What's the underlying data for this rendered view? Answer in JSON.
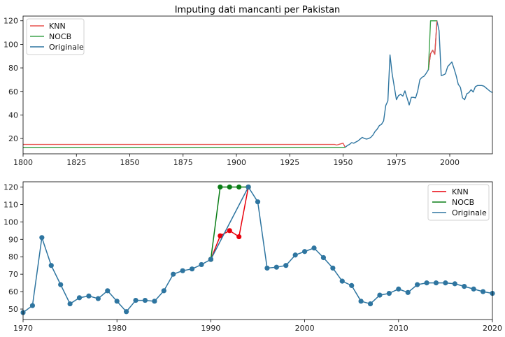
{
  "chart_data": [
    {
      "type": "line",
      "title": "Imputing dati mancanti per Pakistan",
      "xlabel": "",
      "ylabel": "",
      "xlim": [
        1800,
        2020
      ],
      "ylim": [
        7,
        124
      ],
      "xticks": [
        1800,
        1825,
        1850,
        1875,
        1900,
        1925,
        1950,
        1975,
        2000
      ],
      "yticks": [
        20,
        40,
        60,
        80,
        100,
        120
      ],
      "legend_position": "top-left",
      "grid": false,
      "series": [
        {
          "name": "KNN",
          "color": "#e8524f",
          "points": [
            [
              1800,
              15
            ],
            [
              1946,
              15
            ],
            [
              1947,
              14.5
            ],
            [
              1948,
              15
            ],
            [
              1950,
              16
            ],
            [
              1951,
              12.5
            ]
          ]
        },
        {
          "name": "NOCB",
          "color": "#3fa34d",
          "points": [
            [
              1800,
              12.5
            ],
            [
              1951,
              12.5
            ]
          ]
        },
        {
          "name": "Originale",
          "color": "#2e75a0",
          "points": [
            [
              1951,
              12.5
            ],
            [
              1952,
              14
            ],
            [
              1953,
              15
            ],
            [
              1954,
              16.5
            ],
            [
              1955,
              16
            ],
            [
              1956,
              17
            ],
            [
              1957,
              18
            ],
            [
              1958,
              19.5
            ],
            [
              1959,
              21
            ],
            [
              1960,
              20
            ],
            [
              1961,
              19.5
            ],
            [
              1962,
              20
            ],
            [
              1963,
              21
            ],
            [
              1964,
              23
            ],
            [
              1965,
              26
            ],
            [
              1966,
              28
            ],
            [
              1967,
              31
            ],
            [
              1968,
              32
            ],
            [
              1969,
              35
            ],
            [
              1970,
              48
            ],
            [
              1971,
              52
            ],
            [
              1972,
              91
            ],
            [
              1973,
              75
            ],
            [
              1974,
              64
            ],
            [
              1975,
              53
            ],
            [
              1976,
              56.5
            ],
            [
              1977,
              57.5
            ],
            [
              1978,
              56
            ],
            [
              1979,
              60.5
            ],
            [
              1980,
              54.5
            ],
            [
              1981,
              48.5
            ],
            [
              1982,
              55
            ],
            [
              1983,
              55
            ],
            [
              1984,
              54.5
            ],
            [
              1985,
              60.5
            ],
            [
              1986,
              70
            ],
            [
              1987,
              72
            ],
            [
              1988,
              73
            ],
            [
              1989,
              75.5
            ],
            [
              1990,
              78.5
            ],
            [
              1991,
              92
            ],
            [
              1992,
              95
            ],
            [
              1993,
              91.5
            ],
            [
              1994,
              120
            ],
            [
              1995,
              111.5
            ],
            [
              1996,
              73.5
            ],
            [
              1997,
              74
            ],
            [
              1998,
              75
            ],
            [
              1999,
              81
            ],
            [
              2000,
              83
            ],
            [
              2001,
              85
            ],
            [
              2002,
              79.5
            ],
            [
              2003,
              73.5
            ],
            [
              2004,
              66
            ],
            [
              2005,
              63.5
            ],
            [
              2006,
              54.5
            ],
            [
              2007,
              53
            ],
            [
              2008,
              58
            ],
            [
              2009,
              59
            ],
            [
              2010,
              61.5
            ],
            [
              2011,
              59.5
            ],
            [
              2012,
              64
            ],
            [
              2013,
              65
            ],
            [
              2014,
              65
            ],
            [
              2015,
              65
            ],
            [
              2016,
              64.5
            ],
            [
              2017,
              63
            ],
            [
              2018,
              61.5
            ],
            [
              2019,
              60
            ],
            [
              2020,
              59
            ]
          ]
        }
      ],
      "overlays": [
        {
          "series": "KNN",
          "points": [
            [
              1990,
              78.5
            ],
            [
              1991,
              92
            ],
            [
              1992,
              95
            ],
            [
              1993,
              91.5
            ],
            [
              1994,
              120
            ]
          ]
        },
        {
          "series": "NOCB",
          "points": [
            [
              1990,
              78.5
            ],
            [
              1991,
              120
            ],
            [
              1992,
              120
            ],
            [
              1993,
              120
            ],
            [
              1994,
              120
            ]
          ]
        }
      ]
    },
    {
      "type": "line",
      "title": "",
      "xlabel": "",
      "ylabel": "",
      "xlim": [
        1970,
        2020
      ],
      "ylim": [
        44,
        123
      ],
      "xticks": [
        1970,
        1980,
        1990,
        2000,
        2010,
        2020
      ],
      "yticks": [
        50,
        60,
        70,
        80,
        90,
        100,
        110,
        120
      ],
      "legend_position": "top-right",
      "grid": false,
      "markers": true,
      "series": [
        {
          "name": "KNN",
          "color": "#e8000b",
          "points": [
            [
              1990,
              78.5
            ],
            [
              1991,
              92
            ],
            [
              1992,
              95
            ],
            [
              1993,
              91.5
            ],
            [
              1994,
              120
            ]
          ]
        },
        {
          "name": "NOCB",
          "color": "#0a7d16",
          "points": [
            [
              1990,
              78.5
            ],
            [
              1991,
              120
            ],
            [
              1992,
              120
            ],
            [
              1993,
              120
            ],
            [
              1994,
              120
            ]
          ]
        },
        {
          "name": "Originale",
          "color": "#2e75a0",
          "points": [
            [
              1970,
              48
            ],
            [
              1971,
              52
            ],
            [
              1972,
              91
            ],
            [
              1973,
              75
            ],
            [
              1974,
              64
            ],
            [
              1975,
              53
            ],
            [
              1976,
              56.5
            ],
            [
              1977,
              57.5
            ],
            [
              1978,
              56
            ],
            [
              1979,
              60.5
            ],
            [
              1980,
              54.5
            ],
            [
              1981,
              48.5
            ],
            [
              1982,
              55
            ],
            [
              1983,
              55
            ],
            [
              1984,
              54.5
            ],
            [
              1985,
              60.5
            ],
            [
              1986,
              70
            ],
            [
              1987,
              72
            ],
            [
              1988,
              73
            ],
            [
              1989,
              75.5
            ],
            [
              1990,
              78.5
            ],
            [
              1994,
              120
            ],
            [
              1995,
              111.5
            ],
            [
              1996,
              73.5
            ],
            [
              1997,
              74
            ],
            [
              1998,
              75
            ],
            [
              1999,
              81
            ],
            [
              2000,
              83
            ],
            [
              2001,
              85
            ],
            [
              2002,
              79.5
            ],
            [
              2003,
              73.5
            ],
            [
              2004,
              66
            ],
            [
              2005,
              63.5
            ],
            [
              2006,
              54.5
            ],
            [
              2007,
              53
            ],
            [
              2008,
              58
            ],
            [
              2009,
              59
            ],
            [
              2010,
              61.5
            ],
            [
              2011,
              59.5
            ],
            [
              2012,
              64
            ],
            [
              2013,
              65
            ],
            [
              2014,
              65
            ],
            [
              2015,
              65
            ],
            [
              2016,
              64.5
            ],
            [
              2017,
              63
            ],
            [
              2018,
              61.5
            ],
            [
              2019,
              60
            ],
            [
              2020,
              59
            ]
          ]
        }
      ]
    }
  ]
}
